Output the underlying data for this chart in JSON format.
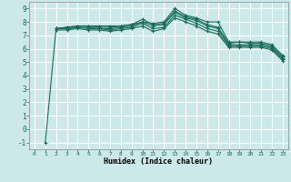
{
  "xlabel": "Humidex (Indice chaleur)",
  "ylabel": "",
  "xlim": [
    -0.5,
    23.5
  ],
  "ylim": [
    -1.5,
    9.5
  ],
  "xticks": [
    0,
    1,
    2,
    3,
    4,
    5,
    6,
    7,
    8,
    9,
    10,
    11,
    12,
    13,
    14,
    15,
    16,
    17,
    18,
    19,
    20,
    21,
    22,
    23
  ],
  "yticks": [
    -1,
    0,
    1,
    2,
    3,
    4,
    5,
    6,
    7,
    8,
    9
  ],
  "bg_color": "#cce8e8",
  "grid_color": "#ffffff",
  "line_color": "#1a6b5a",
  "lines": [
    [
      null,
      -1.0,
      7.5,
      7.6,
      7.7,
      7.7,
      7.7,
      7.7,
      7.7,
      7.8,
      8.0,
      7.9,
      8.0,
      9.0,
      8.5,
      8.3,
      8.0,
      8.0,
      6.5,
      6.5,
      6.5,
      6.5,
      6.3,
      5.5
    ],
    [
      null,
      null,
      7.5,
      7.6,
      7.7,
      7.7,
      7.6,
      7.6,
      7.7,
      7.8,
      8.2,
      7.8,
      7.9,
      8.8,
      8.4,
      8.2,
      7.8,
      7.6,
      6.4,
      6.5,
      6.4,
      6.4,
      6.2,
      5.4
    ],
    [
      null,
      null,
      7.5,
      7.5,
      7.6,
      7.6,
      7.5,
      7.5,
      7.6,
      7.7,
      8.0,
      7.7,
      7.8,
      8.7,
      8.3,
      8.1,
      7.7,
      7.5,
      6.3,
      6.3,
      6.3,
      6.3,
      6.1,
      5.3
    ],
    [
      null,
      null,
      7.5,
      7.5,
      7.6,
      7.5,
      7.5,
      7.4,
      7.5,
      7.6,
      7.9,
      7.5,
      7.6,
      8.5,
      8.2,
      7.9,
      7.5,
      7.3,
      6.2,
      6.2,
      6.2,
      6.2,
      6.0,
      5.2
    ],
    [
      null,
      null,
      7.4,
      7.4,
      7.5,
      7.4,
      7.4,
      7.3,
      7.4,
      7.5,
      7.7,
      7.3,
      7.5,
      8.3,
      8.0,
      7.7,
      7.3,
      7.1,
      6.1,
      6.1,
      6.1,
      6.1,
      5.9,
      5.1
    ]
  ]
}
